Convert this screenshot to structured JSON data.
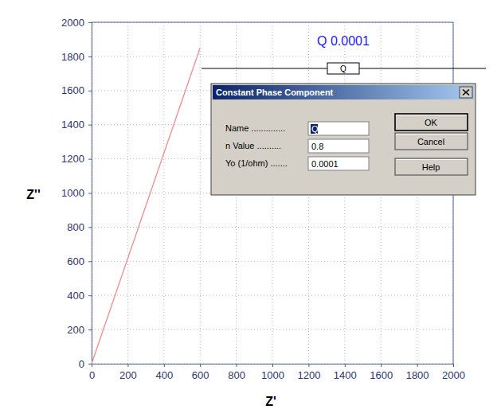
{
  "chart_data": {
    "type": "line",
    "x_label": "Z'",
    "y_label": "Z''",
    "x": [
      0,
      600
    ],
    "values": [
      0,
      1850
    ],
    "color": "#f48a8a",
    "xlim": [
      0,
      2000
    ],
    "ylim": [
      0,
      2000
    ],
    "xticks": [
      0,
      200,
      400,
      600,
      800,
      1000,
      1200,
      1400,
      1600,
      1800,
      2000
    ],
    "yticks": [
      0,
      200,
      400,
      600,
      800,
      1000,
      1200,
      1400,
      1600,
      1800,
      2000
    ],
    "grid": true,
    "annotations": {
      "element_label": "Q 0.0001",
      "element_symbol": "Q",
      "dialog": {
        "title": "Constant Phase Component",
        "fields": [
          {
            "label": "Name ..............",
            "value": "Q"
          },
          {
            "label": "n Value ..........",
            "value": "0.8"
          },
          {
            "label": "Yo (1/ohm) .......",
            "value": "0.0001"
          }
        ],
        "buttons": [
          "OK",
          "Cancel",
          "Help"
        ]
      }
    }
  }
}
